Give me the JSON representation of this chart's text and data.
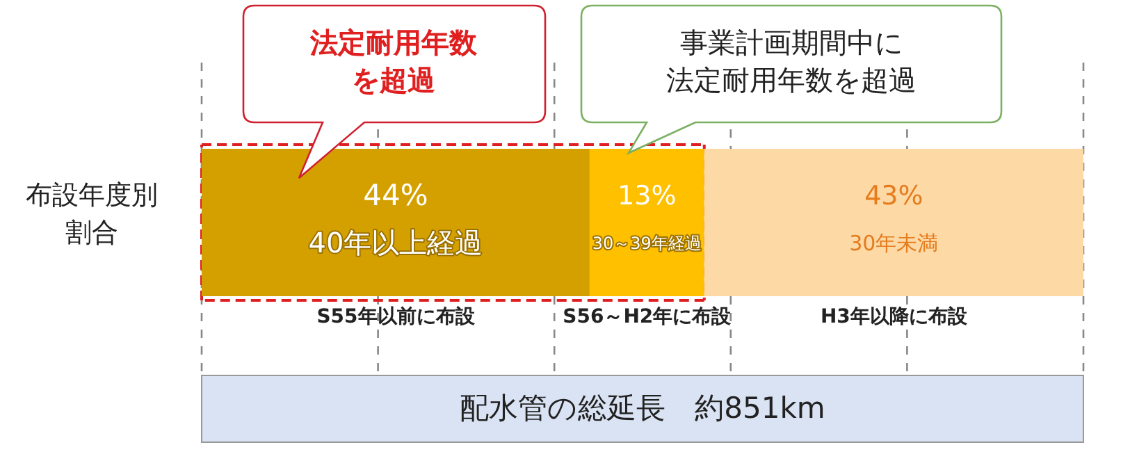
{
  "chart_data": {
    "type": "bar",
    "orientation": "horizontal",
    "stacked": true,
    "categories": [
      "布設年度別割合"
    ],
    "series": [
      {
        "name": "40年以上経過",
        "color": "#d4a000",
        "values": [
          44
        ],
        "value_labels": [
          "44%"
        ]
      },
      {
        "name": "30～39年経過",
        "color": "#ffc000",
        "values": [
          13
        ],
        "value_labels": [
          "13%"
        ]
      },
      {
        "name": "30年未満",
        "color": "#fdd9a5",
        "values": [
          43
        ],
        "value_labels": [
          "43%"
        ]
      }
    ],
    "xlim": [
      0,
      100
    ],
    "xticks": [
      0,
      20,
      40,
      60,
      80,
      100
    ],
    "tick_labels": false,
    "grid": "x",
    "annotations": [
      "法定耐用年数を超過",
      "事業計画期間中に法定耐用年数を超過",
      "S55年以前に布設",
      "S56～H2年に布設",
      "H3年以降に布設",
      "配水管の総延長　約851km"
    ]
  }
}
